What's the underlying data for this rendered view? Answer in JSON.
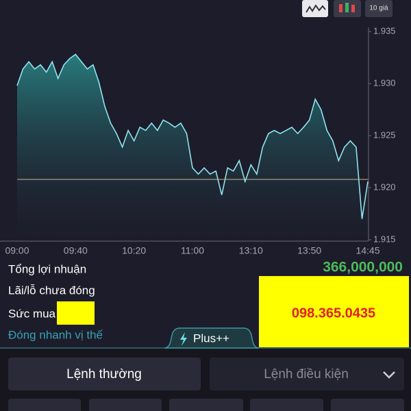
{
  "toolbar": {
    "range_label": "10 giá"
  },
  "chart_data": {
    "type": "line",
    "color": "#8fe3f0",
    "categories": [
      "09:00",
      null,
      null,
      null,
      null,
      null,
      null,
      null,
      null,
      null,
      "09:40",
      null,
      null,
      null,
      null,
      null,
      null,
      null,
      null,
      null,
      "10:20",
      null,
      null,
      null,
      null,
      null,
      null,
      null,
      null,
      null,
      "11:00",
      null,
      null,
      null,
      null,
      null,
      null,
      null,
      null,
      null,
      "13:10",
      null,
      null,
      null,
      null,
      null,
      null,
      null,
      null,
      null,
      "13:50",
      null,
      null,
      null,
      null,
      null,
      null,
      null,
      null,
      null,
      "14:45"
    ],
    "values": [
      1.9298,
      1.9314,
      1.9321,
      1.9314,
      1.9318,
      1.9311,
      1.9321,
      1.9305,
      1.9318,
      1.9324,
      1.9328,
      1.9321,
      1.9314,
      1.9318,
      1.9301,
      1.9278,
      1.9262,
      1.9252,
      1.9239,
      1.9255,
      1.9245,
      1.9258,
      1.9255,
      1.9262,
      1.9255,
      1.9265,
      1.9262,
      1.9258,
      1.9262,
      1.9252,
      1.9219,
      1.9213,
      1.9219,
      1.9213,
      1.9216,
      1.9193,
      1.9219,
      1.9216,
      1.9226,
      1.9206,
      1.9222,
      1.9213,
      1.9239,
      1.9252,
      1.9255,
      1.9252,
      1.9255,
      1.9258,
      1.9252,
      1.9258,
      1.9265,
      1.9285,
      1.9275,
      1.9255,
      1.9245,
      1.9226,
      1.9239,
      1.9245,
      1.9239,
      1.917,
      1.9206
    ],
    "reference_line": 1.9208,
    "ylim": [
      1.915,
      1.935
    ],
    "yticks": [
      1.915,
      {
        "value": 1.92,
        "label": "1.920"
      },
      1.925,
      {
        "value": 1.93,
        "label": "1.930"
      },
      1.935
    ]
  },
  "summary": {
    "total_profit_label": "Tổng lợi nhuận",
    "total_profit_value": "366,000,000",
    "unrealized_label": "Lãi/lỗ chưa đóng",
    "buying_power_label": "Sức mua",
    "quick_close": "Đóng nhanh vị thế",
    "overlay_phone": "098.365.0435"
  },
  "tab": {
    "label": "Plus++"
  },
  "orders": {
    "normal": "Lệnh thường",
    "conditional": "Lệnh điều kiện"
  }
}
